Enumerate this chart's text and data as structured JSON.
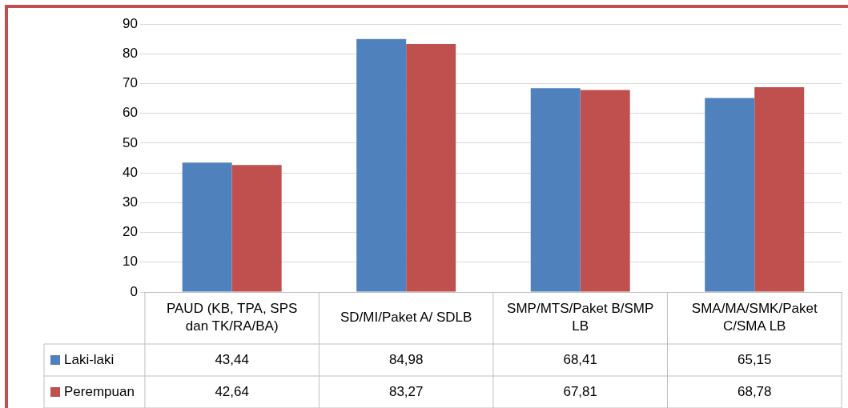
{
  "chart_data": {
    "type": "bar",
    "categories": [
      "PAUD (KB, TPA, SPS dan TK/RA/BA)",
      "SD/MI/Paket A/ SDLB",
      "SMP/MTS/Paket B/SMP LB",
      "SMA/MA/SMK/Paket C/SMA LB"
    ],
    "series": [
      {
        "name": "Laki-laki",
        "color": "#4f81bd",
        "values": [
          43.44,
          84.98,
          68.41,
          65.15
        ],
        "value_labels": [
          "43,44",
          "84,98",
          "68,41",
          "65,15"
        ]
      },
      {
        "name": "Perempuan",
        "color": "#c0504d",
        "values": [
          42.64,
          83.27,
          67.81,
          68.78
        ],
        "value_labels": [
          "42,64",
          "83,27",
          "67,81",
          "68,78"
        ]
      }
    ],
    "ylim": [
      0,
      90
    ],
    "yticks": [
      0,
      10,
      20,
      30,
      40,
      50,
      60,
      70,
      80,
      90
    ],
    "grid": "y",
    "legend": "bottom"
  }
}
